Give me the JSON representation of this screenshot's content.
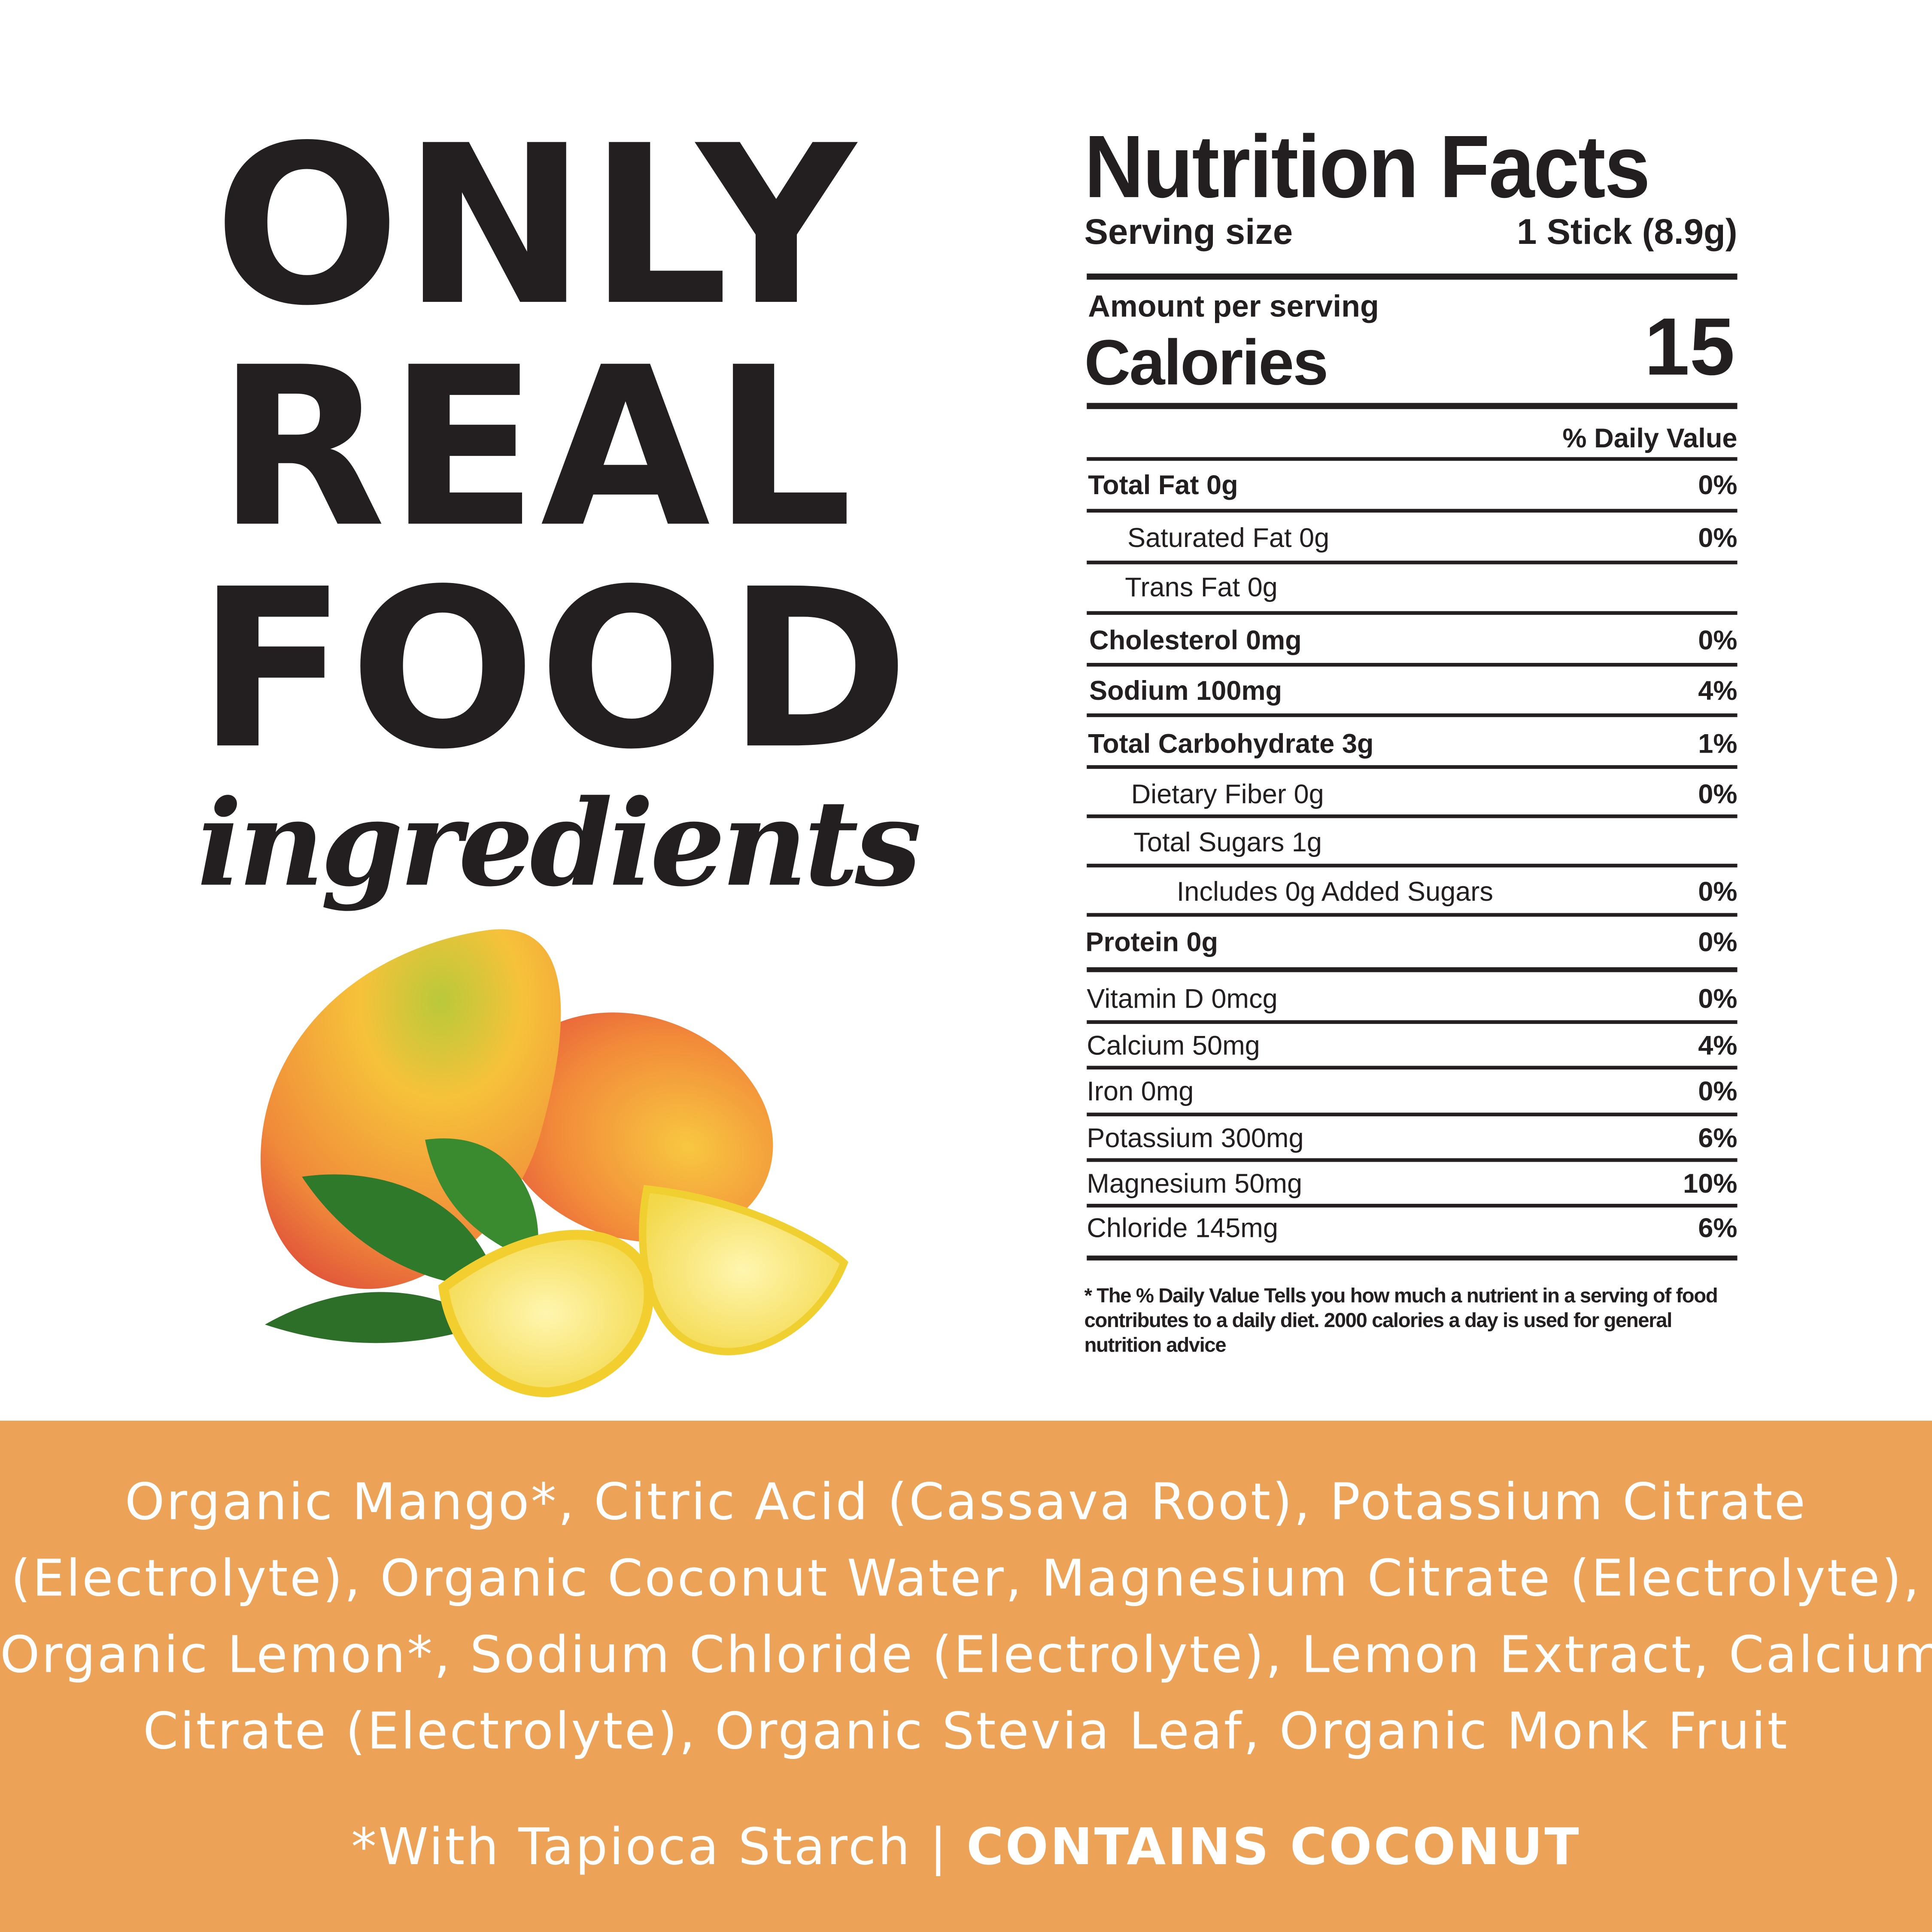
{
  "headline": {
    "line1": "ONLY",
    "line2": "REAL",
    "line3": "FOOD",
    "script": "ingredients"
  },
  "image": {
    "subject": "mango-and-lemon"
  },
  "nutrition": {
    "title": "Nutrition Facts",
    "serving_label": "Serving size",
    "serving_value": "1 Stick (8.9g)",
    "amount_label": "Amount per serving",
    "calories_label": "Calories",
    "calories_value": "15",
    "dv_header": "% Daily Value",
    "rows": [
      {
        "label": "Total Fat 0g",
        "dv": "0%"
      },
      {
        "label": "Saturated Fat 0g",
        "dv": "0%"
      },
      {
        "label": "Trans Fat 0g",
        "dv": ""
      },
      {
        "label": "Cholesterol 0mg",
        "dv": "0%"
      },
      {
        "label": "Sodium 100mg",
        "dv": "4%"
      },
      {
        "label": "Total Carbohydrate 3g",
        "dv": "1%"
      },
      {
        "label": "Dietary Fiber 0g",
        "dv": "0%"
      },
      {
        "label": "Total Sugars  1g",
        "dv": ""
      },
      {
        "label": "Includes 0g Added Sugars",
        "dv": "0%"
      },
      {
        "label": "Protein 0g",
        "dv": "0%"
      }
    ],
    "vitamins": [
      {
        "label": "Vitamin D 0mcg",
        "dv": "0%"
      },
      {
        "label": "Calcium 50mg",
        "dv": "4%"
      },
      {
        "label": "Iron 0mg",
        "dv": "0%"
      },
      {
        "label": "Potassium 300mg",
        "dv": "6%"
      },
      {
        "label": "Magnesium 50mg",
        "dv": "10%"
      },
      {
        "label": "Chloride 145mg",
        "dv": "6%"
      }
    ],
    "footnote": "* The % Daily Value Tells you how much a nutrient in a serving of food contributes to a daily diet. 2000 calories a day is used for general nutrition advice"
  },
  "ingredients": {
    "lines": [
      "Organic Mango*, Citric Acid (Cassava Root), Potassium Citrate",
      "(Electrolyte), Organic Coconut Water, Magnesium Citrate (Electrolyte),",
      "Organic Lemon*, Sodium Chloride (Electrolyte), Lemon Extract, Calcium",
      "Citrate (Electrolyte), Organic Stevia Leaf, Organic Monk Fruit"
    ],
    "note": "*With Tapioca Starch | ",
    "allergen": "CONTAINS COCONUT"
  },
  "colors": {
    "band": "#eca257",
    "text": "#231f20"
  }
}
